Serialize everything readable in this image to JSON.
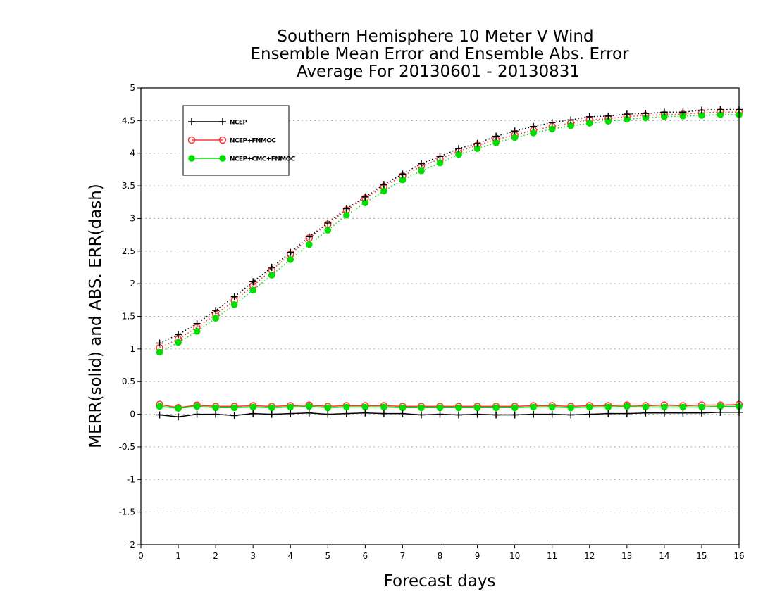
{
  "chart_data": {
    "type": "line",
    "title_lines": [
      "Southern Hemisphere 10 Meter V Wind",
      "Ensemble Mean Error and Ensemble Abs. Error",
      "Average For 20130601 - 20130831"
    ],
    "xlabel": "Forecast days",
    "ylabel": "MERR(solid) and ABS. ERR(dash)",
    "xlim": [
      0,
      16
    ],
    "ylim": [
      -2,
      5
    ],
    "xticks": [
      "0",
      "1",
      "2",
      "3",
      "4",
      "5",
      "6",
      "7",
      "8",
      "9",
      "10",
      "11",
      "12",
      "13",
      "14",
      "15",
      "16"
    ],
    "yticks": [
      "5",
      "4.5",
      "4",
      "3.5",
      "3",
      "2.5",
      "2",
      "1.5",
      "1",
      "0.5",
      "0",
      "-0.5",
      "-1",
      "-1.5",
      "-2"
    ],
    "grid": "horizontal dotted",
    "legend_position": "top-left",
    "x": [
      0.5,
      1,
      1.5,
      2,
      2.5,
      3,
      3.5,
      4,
      4.5,
      5,
      5.5,
      6,
      6.5,
      7,
      7.5,
      8,
      8.5,
      9,
      9.5,
      10,
      10.5,
      11,
      11.5,
      12,
      12.5,
      13,
      13.5,
      14,
      14.5,
      15,
      15.5,
      16
    ],
    "series": [
      {
        "name": "NCEP",
        "color": "#000000",
        "marker": "plus",
        "mean_error": [
          -0.01,
          -0.04,
          0.0,
          0.0,
          -0.02,
          0.01,
          0.0,
          0.01,
          0.02,
          0.0,
          0.01,
          0.02,
          0.01,
          0.01,
          -0.01,
          0.0,
          -0.01,
          0.0,
          -0.01,
          -0.01,
          0.0,
          0.0,
          -0.01,
          0.0,
          0.01,
          0.01,
          0.02,
          0.02,
          0.02,
          0.02,
          0.03,
          0.03
        ],
        "abs_error": [
          1.09,
          1.22,
          1.39,
          1.59,
          1.8,
          2.03,
          2.25,
          2.48,
          2.72,
          2.93,
          3.15,
          3.33,
          3.52,
          3.68,
          3.84,
          3.95,
          4.07,
          4.15,
          4.26,
          4.34,
          4.41,
          4.47,
          4.51,
          4.56,
          4.57,
          4.6,
          4.61,
          4.63,
          4.63,
          4.66,
          4.67,
          4.67
        ]
      },
      {
        "name": "NCEP+FNMOC",
        "color": "#ff3333",
        "marker": "open-circle",
        "mean_error": [
          0.15,
          0.1,
          0.14,
          0.12,
          0.12,
          0.13,
          0.12,
          0.13,
          0.14,
          0.12,
          0.13,
          0.13,
          0.13,
          0.12,
          0.12,
          0.12,
          0.12,
          0.12,
          0.12,
          0.12,
          0.13,
          0.13,
          0.12,
          0.13,
          0.13,
          0.14,
          0.13,
          0.14,
          0.13,
          0.14,
          0.14,
          0.15
        ],
        "abs_error": [
          1.02,
          1.15,
          1.33,
          1.53,
          1.74,
          1.97,
          2.21,
          2.45,
          2.7,
          2.91,
          3.13,
          3.31,
          3.49,
          3.65,
          3.8,
          3.91,
          4.03,
          4.12,
          4.21,
          4.28,
          4.35,
          4.41,
          4.46,
          4.51,
          4.53,
          4.56,
          4.58,
          4.59,
          4.6,
          4.62,
          4.63,
          4.63
        ]
      },
      {
        "name": "NCEP+CMC+FNMOC",
        "color": "#00dd00",
        "marker": "filled-circle",
        "mean_error": [
          0.12,
          0.09,
          0.12,
          0.1,
          0.1,
          0.11,
          0.1,
          0.11,
          0.12,
          0.1,
          0.11,
          0.11,
          0.11,
          0.1,
          0.1,
          0.1,
          0.1,
          0.1,
          0.1,
          0.1,
          0.11,
          0.11,
          0.1,
          0.11,
          0.11,
          0.12,
          0.11,
          0.11,
          0.11,
          0.11,
          0.12,
          0.12
        ],
        "abs_error": [
          0.95,
          1.1,
          1.27,
          1.47,
          1.68,
          1.9,
          2.13,
          2.37,
          2.6,
          2.82,
          3.05,
          3.24,
          3.42,
          3.59,
          3.73,
          3.85,
          3.98,
          4.07,
          4.16,
          4.24,
          4.31,
          4.37,
          4.42,
          4.46,
          4.49,
          4.52,
          4.54,
          4.56,
          4.57,
          4.58,
          4.59,
          4.59
        ]
      }
    ]
  }
}
